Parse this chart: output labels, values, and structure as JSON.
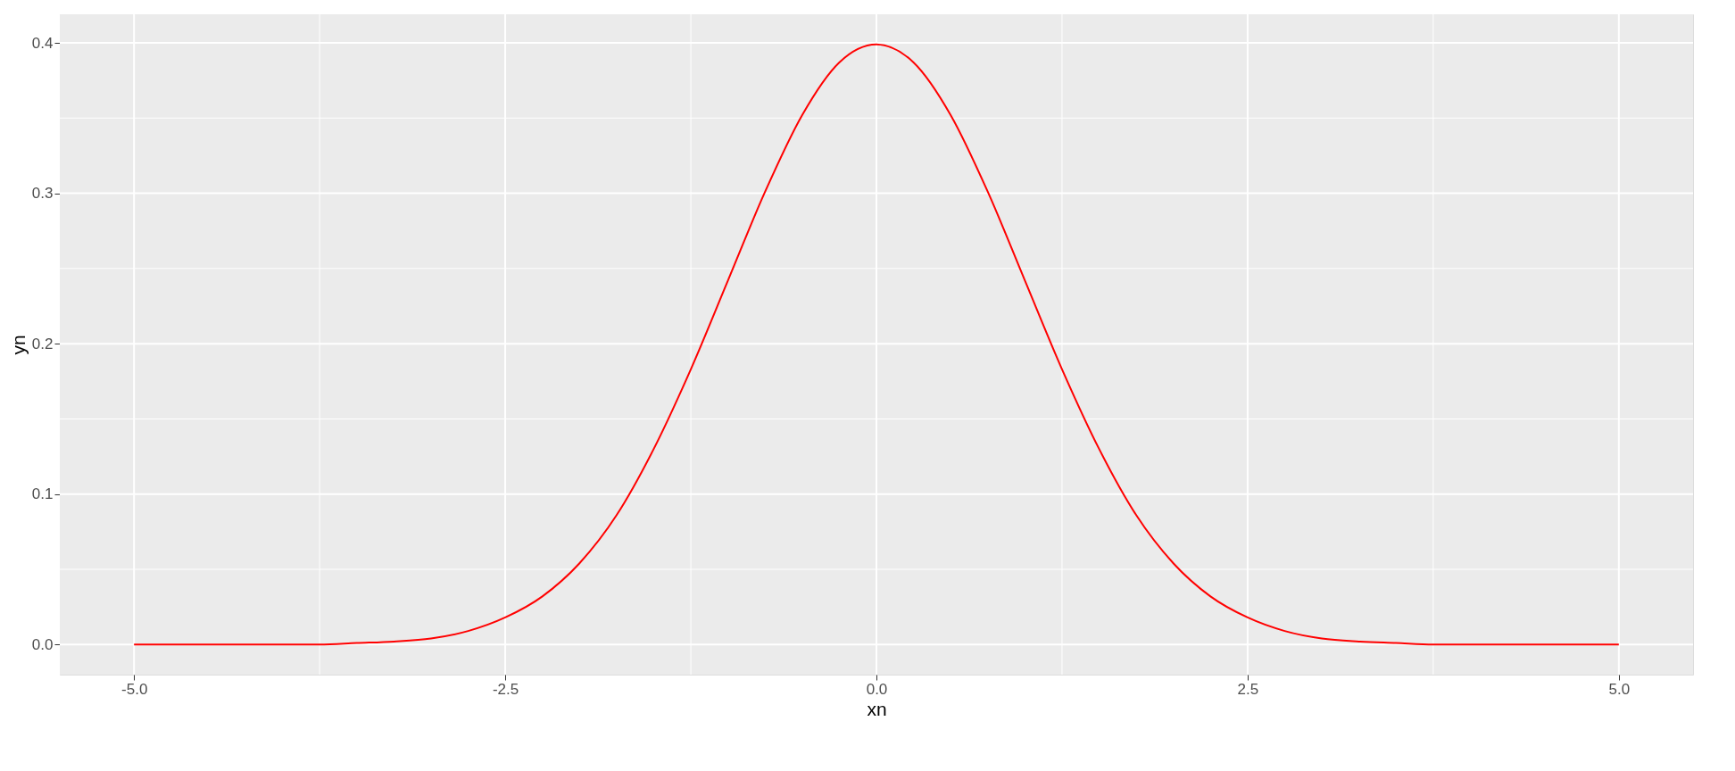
{
  "chart_data": {
    "type": "line",
    "xlabel": "xn",
    "ylabel": "yn",
    "x": [
      -5,
      -4.75,
      -4.5,
      -4.25,
      -4,
      -3.75,
      -3.5,
      -3.25,
      -3,
      -2.75,
      -2.5,
      -2.25,
      -2,
      -1.75,
      -1.5,
      -1.25,
      -1,
      -0.75,
      -0.5,
      -0.25,
      0,
      0.25,
      0.5,
      0.75,
      1,
      1.25,
      1.5,
      1.75,
      2,
      2.25,
      2.5,
      2.75,
      3,
      3.25,
      3.5,
      3.75,
      4,
      4.25,
      4.5,
      4.75,
      5
    ],
    "series": [
      {
        "color": "#ff0000",
        "values": [
          0,
          0,
          0,
          0,
          0,
          0,
          0.001,
          0.002,
          0.004,
          0.009,
          0.018,
          0.032,
          0.054,
          0.086,
          0.13,
          0.183,
          0.242,
          0.301,
          0.352,
          0.387,
          0.399,
          0.387,
          0.352,
          0.301,
          0.242,
          0.183,
          0.13,
          0.086,
          0.054,
          0.032,
          0.018,
          0.009,
          0.004,
          0.002,
          0.001,
          0,
          0,
          0,
          0,
          0,
          0
        ]
      }
    ],
    "xlim": [
      -5.5,
      5.5
    ],
    "ylim": [
      -0.02,
      0.419
    ],
    "xticks": [
      {
        "value": -5,
        "label": "-5.0"
      },
      {
        "value": -2.5,
        "label": "-2.5"
      },
      {
        "value": 0,
        "label": "0.0"
      },
      {
        "value": 2.5,
        "label": "2.5"
      },
      {
        "value": 5,
        "label": "5.0"
      }
    ],
    "yticks": [
      {
        "value": 0,
        "label": "0.0"
      },
      0.1,
      0.2,
      0.3,
      0.4
    ],
    "grid": true,
    "marker": "none",
    "line_style": "solid"
  }
}
